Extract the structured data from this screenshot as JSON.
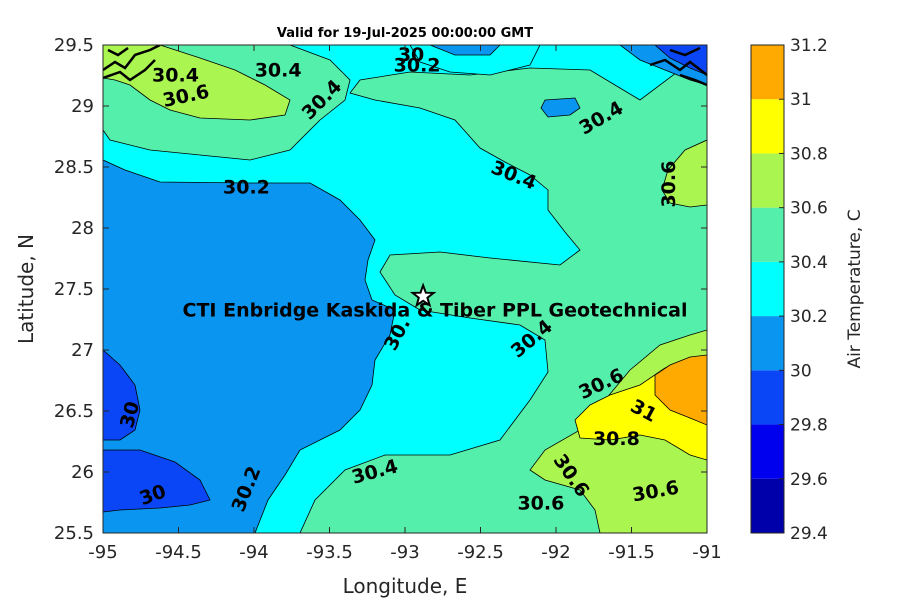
{
  "title": "Valid for 19-Jul-2025 00:00:00 GMT",
  "chart_data": {
    "type": "contour",
    "xlabel": "Longitude, E",
    "ylabel": "Latitude, N",
    "xlim": [
      -95,
      -91
    ],
    "ylim": [
      25.5,
      29.5
    ],
    "xticks": [
      "-95",
      "-94.5",
      "-94",
      "-93.5",
      "-93",
      "-92.5",
      "-92",
      "-91.5",
      "-91"
    ],
    "yticks": [
      "25.5",
      "26",
      "26.5",
      "27",
      "27.5",
      "28",
      "28.5",
      "29",
      "29.5"
    ],
    "colorbar": {
      "label": "Air Temperature, C",
      "range": [
        29.4,
        31.2
      ],
      "ticks": [
        "29.4",
        "29.6",
        "29.8",
        "30",
        "30.2",
        "30.4",
        "30.6",
        "30.8",
        "31",
        "31.2"
      ]
    },
    "levels": [
      29.4,
      29.6,
      29.8,
      30.0,
      30.2,
      30.4,
      30.6,
      30.8,
      31.0,
      31.2
    ],
    "level_colors": [
      "#0000aa",
      "#0000ee",
      "#0a46f5",
      "#0a96f0",
      "#00ffff",
      "#55efac",
      "#aaf550",
      "#ffff00",
      "#ffaa00",
      "#ff5500"
    ],
    "contour_labels": [
      {
        "text": "30",
        "x": -92.96,
        "y": 29.42,
        "angle": 0
      },
      {
        "text": "30.2",
        "x": -92.92,
        "y": 29.33,
        "angle": 0
      },
      {
        "text": "30.4",
        "x": -94.52,
        "y": 29.25,
        "angle": 0
      },
      {
        "text": "30.4",
        "x": -93.84,
        "y": 29.29,
        "angle": 0
      },
      {
        "text": "30.6",
        "x": -94.45,
        "y": 29.08,
        "angle": -12
      },
      {
        "text": "30.4",
        "x": -93.55,
        "y": 29.05,
        "angle": -45
      },
      {
        "text": "30.4",
        "x": -91.7,
        "y": 28.9,
        "angle": -30
      },
      {
        "text": "30.2",
        "x": -94.05,
        "y": 28.33,
        "angle": 0
      },
      {
        "text": "30.4",
        "x": -92.28,
        "y": 28.43,
        "angle": 22
      },
      {
        "text": "30.6",
        "x": -91.25,
        "y": 28.36,
        "angle": -90
      },
      {
        "text": "30.",
        "x": -93.05,
        "y": 27.13,
        "angle": -62
      },
      {
        "text": "30.4",
        "x": -92.16,
        "y": 27.09,
        "angle": -40
      },
      {
        "text": "30.6",
        "x": -91.7,
        "y": 26.72,
        "angle": -25
      },
      {
        "text": "31",
        "x": -91.42,
        "y": 26.5,
        "angle": 28
      },
      {
        "text": "30.8",
        "x": -91.6,
        "y": 26.27,
        "angle": 0
      },
      {
        "text": "30",
        "x": -94.82,
        "y": 26.47,
        "angle": -75
      },
      {
        "text": "30.4",
        "x": -93.2,
        "y": 26.0,
        "angle": -15
      },
      {
        "text": "30.2",
        "x": -94.05,
        "y": 25.86,
        "angle": -68
      },
      {
        "text": "30",
        "x": -94.67,
        "y": 25.81,
        "angle": -20
      },
      {
        "text": "30.6",
        "x": -91.9,
        "y": 25.97,
        "angle": 55
      },
      {
        "text": "30.6",
        "x": -92.1,
        "y": 25.74,
        "angle": 0
      },
      {
        "text": "30.6",
        "x": -91.34,
        "y": 25.84,
        "angle": -10
      }
    ],
    "site": {
      "name": "CTI Enbridge  Kaskida & Tiber PPL Geotechnical",
      "x": -92.88,
      "y": 27.44,
      "marker": "star"
    }
  }
}
